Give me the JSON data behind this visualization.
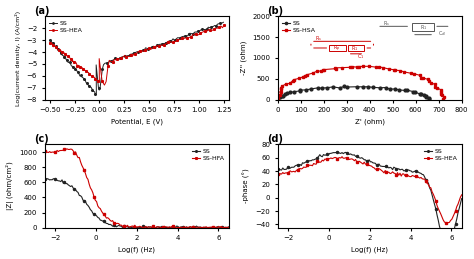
{
  "panel_a": {
    "title": "(a)",
    "xlabel": "Potential, E (V)",
    "ylabel": "Log(current density, I) (A/cm²)",
    "xlim": [
      -0.55,
      1.3
    ],
    "ylim": [
      -8,
      -1
    ],
    "yticks": [
      -8,
      -7,
      -6,
      -5,
      -4,
      -3,
      -2
    ],
    "ss_color": "#222222",
    "hea_color": "#cc0000",
    "legend": [
      "SS",
      "SS-HEA"
    ]
  },
  "panel_b": {
    "title": "(b)",
    "xlabel": "Z' (ohm)",
    "ylabel": "-Z'' (ohm)",
    "xlim": [
      0,
      800
    ],
    "ylim": [
      0,
      2000
    ],
    "yticks": [
      0,
      500,
      1000,
      1500,
      2000
    ],
    "ss_color": "#222222",
    "hea_color": "#cc0000",
    "legend": [
      "SS",
      "SS-HSA"
    ]
  },
  "panel_c": {
    "title": "(c)",
    "xlabel": "Log(f) (Hz)",
    "ylabel": "|Z| (ohm/cm²)",
    "xlim": [
      -2.5,
      6.5
    ],
    "ylim": [
      0,
      1100
    ],
    "yticks": [
      0,
      200,
      400,
      600,
      800,
      1000
    ],
    "ss_color": "#222222",
    "hea_color": "#cc0000",
    "legend": [
      "SS",
      "SS-HFA"
    ]
  },
  "panel_d": {
    "title": "(d)",
    "xlabel": "Log(f) (Hz)",
    "ylabel": "-phase (°)",
    "xlim": [
      -2.5,
      6.5
    ],
    "ylim": [
      -45,
      80
    ],
    "yticks": [
      -40,
      -20,
      0,
      20,
      40,
      60,
      80
    ],
    "ss_color": "#222222",
    "hea_color": "#cc0000",
    "legend": [
      "SS",
      "SS-HEA"
    ]
  }
}
